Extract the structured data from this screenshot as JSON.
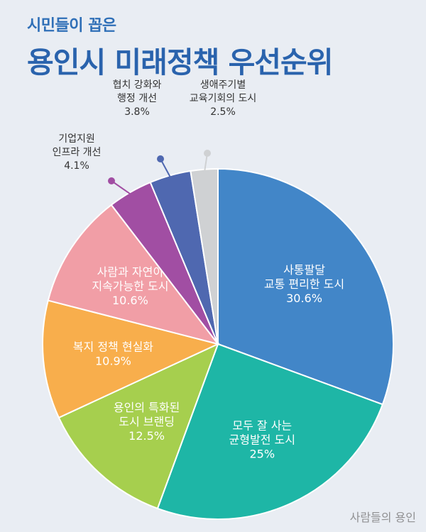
{
  "header": {
    "subtitle": "시민들이 꼽은",
    "title": "용인시 미래정책 우선순위"
  },
  "watermark": "사람들의 용인",
  "chart_data": {
    "type": "pie",
    "title": "용인시 미래정책 우선순위",
    "subtitle": "시민들이 꼽은",
    "slices": [
      {
        "label": [
          "사통팔달",
          "교통 편리한 도시"
        ],
        "value": 30.6,
        "value_text": "30.6%",
        "color": "#4286c8",
        "label_pos": "inside"
      },
      {
        "label": [
          "모두 잘 사는",
          "균형발전 도시"
        ],
        "value": 25,
        "value_text": "25%",
        "color": "#1eb6a6",
        "label_pos": "inside"
      },
      {
        "label": [
          "용인의 특화된",
          "도시 브랜딩"
        ],
        "value": 12.5,
        "value_text": "12.5%",
        "color": "#a6cf4e",
        "label_pos": "inside"
      },
      {
        "label": [
          "복지 정책 현실화"
        ],
        "value": 10.9,
        "value_text": "10.9%",
        "color": "#f8ae4c",
        "label_pos": "inside"
      },
      {
        "label": [
          "사람과 자연이",
          "지속가능한 도시"
        ],
        "value": 10.6,
        "value_text": "10.6%",
        "color": "#f19ea6",
        "label_pos": "inside"
      },
      {
        "label": [
          "기업지원",
          "인프라 개선"
        ],
        "value": 4.1,
        "value_text": "4.1%",
        "color": "#a14ea3",
        "label_pos": "outside"
      },
      {
        "label": [
          "협치 강화와",
          "행정 개선"
        ],
        "value": 3.8,
        "value_text": "3.8%",
        "color": "#4f68b0",
        "label_pos": "outside"
      },
      {
        "label": [
          "생애주기별",
          "교육기회의 도시"
        ],
        "value": 2.5,
        "value_text": "2.5%",
        "color": "#cfd1d3",
        "label_pos": "outside"
      }
    ]
  }
}
